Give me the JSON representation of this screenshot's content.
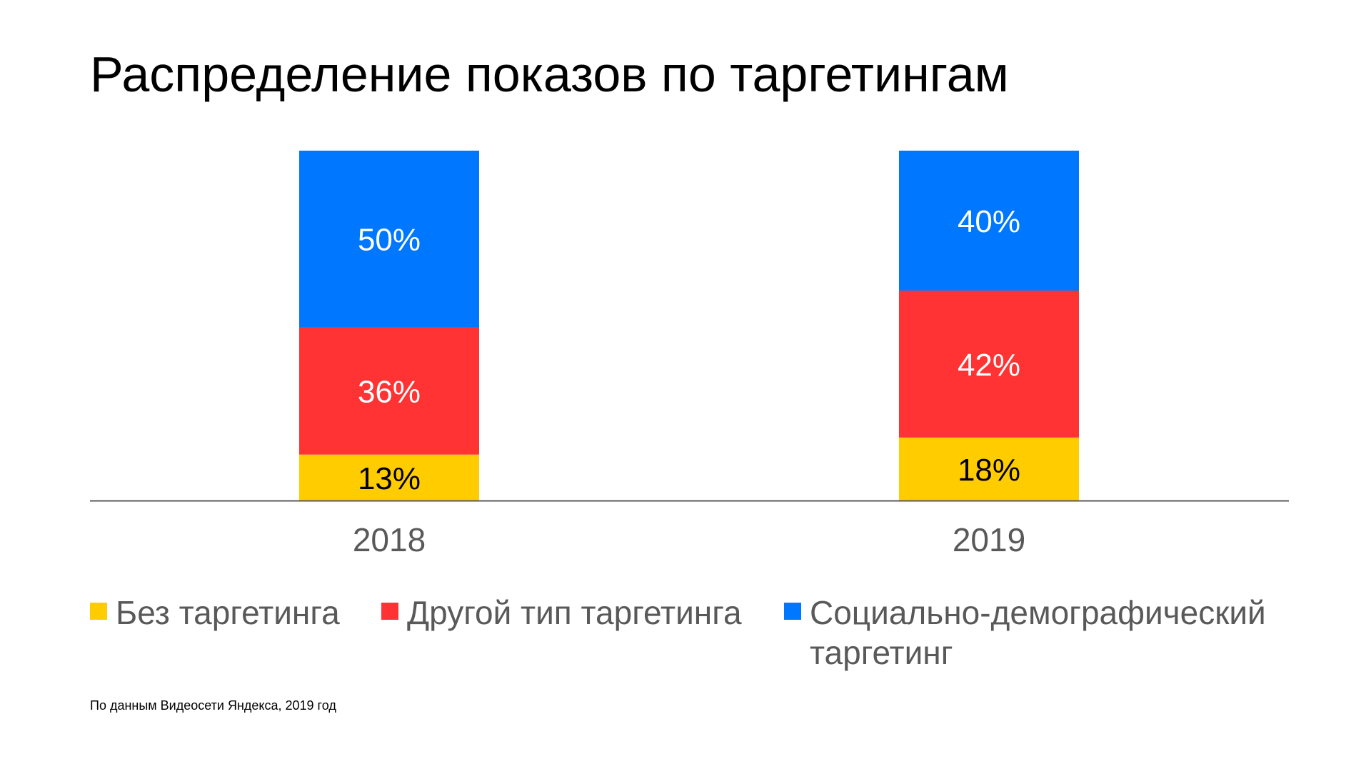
{
  "slide": {
    "title": "Распределение показов по таргетингам",
    "footnote": "По данным Видеосети Яндекса, 2019 год"
  },
  "chart_data": {
    "type": "bar",
    "stacked": true,
    "categories": [
      "2018",
      "2019"
    ],
    "series": [
      {
        "name": "Без таргетинга",
        "values": [
          13,
          18
        ],
        "labels": [
          "13%",
          "18%"
        ],
        "color": "#FFCC00",
        "label_color": "#000000"
      },
      {
        "name": "Другой тип таргетинга",
        "values": [
          36,
          42
        ],
        "labels": [
          "36%",
          "42%"
        ],
        "color": "#FF3333",
        "label_color": "#FFFFFF"
      },
      {
        "name": "Социально-демографический таргетинг",
        "values": [
          50,
          40
        ],
        "labels": [
          "50%",
          "40%"
        ],
        "color": "#0077FF",
        "label_color": "#FFFFFF"
      }
    ],
    "title": "Распределение показов по таргетингам",
    "xlabel": "",
    "ylabel": "",
    "ylim": [
      0,
      100
    ],
    "grid": false,
    "legend": "bottom",
    "axis_color": "#595959",
    "tick_label_color": "#595959"
  }
}
